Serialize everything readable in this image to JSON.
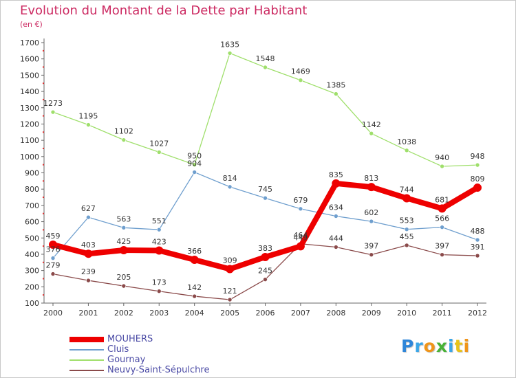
{
  "header": {
    "title": "Evolution du Montant de la Dette par Habitant",
    "subtitle": "(en €)"
  },
  "logo": {
    "letters": [
      "P",
      "r",
      "o",
      "x",
      "i",
      "t",
      "i"
    ],
    "colors": [
      "#2f86d9",
      "#3aa6e8",
      "#f0951a",
      "#47b236",
      "#3aa6e8",
      "#e8c31a",
      "#f0951a"
    ]
  },
  "chart_data": {
    "type": "line",
    "title": "Evolution du Montant de la Dette par Habitant",
    "ylabel": "(en €)",
    "x": [
      "2000",
      "2001",
      "2002",
      "2003",
      "2004",
      "2005",
      "2006",
      "2007",
      "2008",
      "2009",
      "2010",
      "2011",
      "2012"
    ],
    "ylim": [
      100,
      1700
    ],
    "yticks": [
      100,
      200,
      300,
      400,
      500,
      600,
      700,
      800,
      900,
      1000,
      1100,
      1200,
      1300,
      1400,
      1500,
      1600,
      1700
    ],
    "grid": false,
    "legend": "bottom-left",
    "series": [
      {
        "name": "MOUHERS",
        "color": "#ee0000",
        "values": [
          459,
          403,
          425,
          423,
          366,
          309,
          383,
          449,
          835,
          813,
          744,
          681,
          809
        ],
        "labels": [
          "459",
          "403",
          "425",
          "423",
          "366",
          "309",
          "383",
          "449",
          "835",
          "813",
          "744",
          "681",
          "809"
        ]
      },
      {
        "name": "Cluis",
        "color": "#6f9fce",
        "values": [
          376,
          627,
          563,
          551,
          904,
          814,
          745,
          679,
          634,
          602,
          553,
          566,
          488
        ],
        "labels": [
          "376",
          "627",
          "563",
          "551",
          "904",
          "814",
          "745",
          "679",
          "634",
          "602",
          "553",
          "566",
          "488"
        ]
      },
      {
        "name": "Gournay",
        "color": "#9fdf6b",
        "values": [
          1273,
          1195,
          1102,
          1027,
          950,
          1635,
          1548,
          1469,
          1385,
          1142,
          1038,
          940,
          948
        ],
        "labels": [
          "1273",
          "1195",
          "1102",
          "1027",
          "950",
          "1635",
          "1548",
          "1469",
          "1385",
          "1142",
          "1038",
          "940",
          "948"
        ]
      },
      {
        "name": "Neuvy-Saint-Sépulchre",
        "color": "#8a4a4a",
        "values": [
          279,
          239,
          205,
          173,
          142,
          121,
          245,
          464,
          444,
          397,
          455,
          397,
          391
        ],
        "labels": [
          "279",
          "239",
          "205",
          "173",
          "142",
          "121",
          "245",
          "464",
          "444",
          "397",
          "455",
          "397",
          "391"
        ]
      }
    ]
  }
}
